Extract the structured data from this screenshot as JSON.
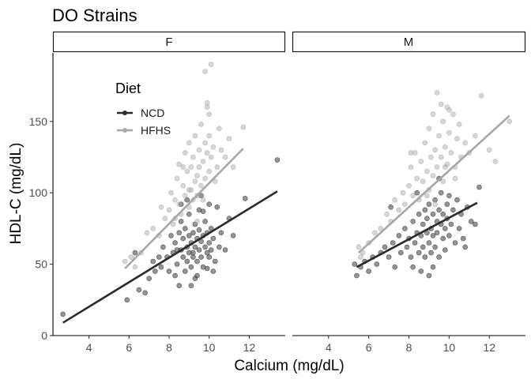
{
  "chart_data": {
    "type": "scatter",
    "title": "DO Strains",
    "xlabel": "Calcium (mg/dL)",
    "ylabel": "HDL-C (mg/dL)",
    "xlim": [
      2.2,
      13.8
    ],
    "ylim": [
      0,
      198
    ],
    "x_ticks": [
      4,
      6,
      8,
      10,
      12
    ],
    "y_ticks": [
      0,
      50,
      100,
      150
    ],
    "grid": false,
    "facets": [
      "F",
      "M"
    ],
    "legend": {
      "title": "Diet",
      "position": "inside-top-left",
      "entries": [
        {
          "label": "NCD",
          "color": "#2b2b2b"
        },
        {
          "label": "HFHS",
          "color": "#a6a6a6"
        }
      ]
    },
    "series": [
      {
        "name": "NCD",
        "facet": "F",
        "color": "#2b2b2b",
        "fit_line": {
          "x": [
            2.7,
            13.4
          ],
          "y": [
            9,
            101
          ]
        },
        "points": [
          [
            2.7,
            15
          ],
          [
            5.9,
            25
          ],
          [
            6.3,
            58
          ],
          [
            6.5,
            32
          ],
          [
            6.8,
            30
          ],
          [
            7.0,
            40
          ],
          [
            7.2,
            52
          ],
          [
            7.3,
            45
          ],
          [
            7.5,
            55
          ],
          [
            7.6,
            48
          ],
          [
            7.7,
            62
          ],
          [
            7.9,
            55
          ],
          [
            8.0,
            45
          ],
          [
            8.1,
            70
          ],
          [
            8.2,
            58
          ],
          [
            8.3,
            65
          ],
          [
            8.3,
            42
          ],
          [
            8.4,
            50
          ],
          [
            8.5,
            72
          ],
          [
            8.5,
            35
          ],
          [
            8.6,
            60
          ],
          [
            8.6,
            80
          ],
          [
            8.7,
            55
          ],
          [
            8.7,
            68
          ],
          [
            8.8,
            45
          ],
          [
            8.8,
            75
          ],
          [
            8.9,
            62
          ],
          [
            8.9,
            52
          ],
          [
            9.0,
            70
          ],
          [
            9.0,
            58
          ],
          [
            9.0,
            85
          ],
          [
            9.1,
            48
          ],
          [
            9.1,
            65
          ],
          [
            9.2,
            72
          ],
          [
            9.2,
            55
          ],
          [
            9.3,
            62
          ],
          [
            9.3,
            78
          ],
          [
            9.3,
            40
          ],
          [
            9.4,
            68
          ],
          [
            9.4,
            52
          ],
          [
            9.5,
            74
          ],
          [
            9.5,
            60
          ],
          [
            9.5,
            88
          ],
          [
            9.6,
            55
          ],
          [
            9.6,
            66
          ],
          [
            9.7,
            70
          ],
          [
            9.7,
            48
          ],
          [
            9.8,
            62
          ],
          [
            9.8,
            80
          ],
          [
            9.9,
            58
          ],
          [
            9.9,
            72
          ],
          [
            10.0,
            65
          ],
          [
            10.0,
            55
          ],
          [
            10.1,
            75
          ],
          [
            10.1,
            60
          ],
          [
            10.2,
            68
          ],
          [
            10.3,
            52
          ],
          [
            10.4,
            90
          ],
          [
            10.5,
            62
          ],
          [
            10.6,
            72
          ],
          [
            10.8,
            60
          ],
          [
            11.0,
            82
          ],
          [
            11.2,
            70
          ],
          [
            11.8,
            96
          ],
          [
            13.4,
            123
          ],
          [
            9.4,
            42
          ],
          [
            8.9,
            95
          ],
          [
            9.6,
            98
          ],
          [
            10.2,
            45
          ],
          [
            9.1,
            35
          ],
          [
            8.4,
            60
          ],
          [
            9.7,
            87
          ],
          [
            10.0,
            92
          ],
          [
            8.6,
            92
          ],
          [
            9.2,
            58
          ],
          [
            9.9,
            47
          ]
        ]
      },
      {
        "name": "HFHS",
        "facet": "F",
        "color": "#a6a6a6",
        "fit_line": {
          "x": [
            5.8,
            11.7
          ],
          "y": [
            47,
            131
          ]
        },
        "points": [
          [
            5.8,
            52
          ],
          [
            6.1,
            55
          ],
          [
            6.3,
            48
          ],
          [
            6.6,
            58
          ],
          [
            6.9,
            72
          ],
          [
            7.2,
            75
          ],
          [
            7.5,
            70
          ],
          [
            7.6,
            90
          ],
          [
            7.8,
            82
          ],
          [
            8.0,
            88
          ],
          [
            8.1,
            100
          ],
          [
            8.2,
            78
          ],
          [
            8.3,
            95
          ],
          [
            8.4,
            110
          ],
          [
            8.5,
            92
          ],
          [
            8.5,
            120
          ],
          [
            8.6,
            85
          ],
          [
            8.7,
            105
          ],
          [
            8.8,
            98
          ],
          [
            8.8,
            128
          ],
          [
            8.9,
            115
          ],
          [
            9.0,
            90
          ],
          [
            9.0,
            135
          ],
          [
            9.1,
            102
          ],
          [
            9.1,
            118
          ],
          [
            9.2,
            95
          ],
          [
            9.2,
            125
          ],
          [
            9.3,
            108
          ],
          [
            9.3,
            140
          ],
          [
            9.4,
            112
          ],
          [
            9.4,
            98
          ],
          [
            9.5,
            130
          ],
          [
            9.5,
            118
          ],
          [
            9.6,
            105
          ],
          [
            9.6,
            148
          ],
          [
            9.7,
            122
          ],
          [
            9.7,
            95
          ],
          [
            9.8,
            135
          ],
          [
            9.8,
            110
          ],
          [
            9.9,
            160
          ],
          [
            9.9,
            128
          ],
          [
            10.0,
            115
          ],
          [
            10.0,
            140
          ],
          [
            10.1,
            190
          ],
          [
            9.8,
            185
          ],
          [
            10.1,
            125
          ],
          [
            10.2,
            132
          ],
          [
            10.3,
            108
          ],
          [
            10.4,
            118
          ],
          [
            10.5,
            145
          ],
          [
            10.6,
            130
          ],
          [
            10.8,
            125
          ],
          [
            11.0,
            138
          ],
          [
            11.2,
            118
          ],
          [
            11.7,
            146
          ],
          [
            9.9,
            163
          ],
          [
            10.0,
            155
          ],
          [
            9.0,
            102
          ],
          [
            8.7,
            118
          ],
          [
            9.4,
            80
          ],
          [
            8.3,
            82
          ]
        ]
      },
      {
        "name": "NCD",
        "facet": "M",
        "color": "#2b2b2b",
        "fit_line": {
          "x": [
            5.4,
            11.4
          ],
          "y": [
            48,
            93
          ]
        },
        "points": [
          [
            5.3,
            50
          ],
          [
            5.4,
            42
          ],
          [
            5.6,
            48
          ],
          [
            5.8,
            52
          ],
          [
            6.0,
            45
          ],
          [
            6.2,
            55
          ],
          [
            6.4,
            50
          ],
          [
            6.6,
            58
          ],
          [
            6.8,
            62
          ],
          [
            7.0,
            55
          ],
          [
            7.2,
            65
          ],
          [
            7.3,
            48
          ],
          [
            7.5,
            70
          ],
          [
            7.6,
            58
          ],
          [
            7.8,
            75
          ],
          [
            7.9,
            62
          ],
          [
            8.0,
            68
          ],
          [
            8.1,
            55
          ],
          [
            8.2,
            80
          ],
          [
            8.3,
            65
          ],
          [
            8.4,
            72
          ],
          [
            8.5,
            58
          ],
          [
            8.5,
            85
          ],
          [
            8.6,
            70
          ],
          [
            8.7,
            62
          ],
          [
            8.7,
            78
          ],
          [
            8.8,
            88
          ],
          [
            8.8,
            55
          ],
          [
            8.9,
            72
          ],
          [
            8.9,
            82
          ],
          [
            9.0,
            65
          ],
          [
            9.0,
            92
          ],
          [
            9.1,
            75
          ],
          [
            9.1,
            58
          ],
          [
            9.2,
            85
          ],
          [
            9.2,
            70
          ],
          [
            9.3,
            95
          ],
          [
            9.3,
            62
          ],
          [
            9.4,
            80
          ],
          [
            9.4,
            72
          ],
          [
            9.5,
            88
          ],
          [
            9.5,
            55
          ],
          [
            9.6,
            78
          ],
          [
            9.6,
            100
          ],
          [
            9.7,
            68
          ],
          [
            9.7,
            85
          ],
          [
            9.8,
            75
          ],
          [
            9.8,
            60
          ],
          [
            9.9,
            92
          ],
          [
            9.9,
            82
          ],
          [
            10.0,
            70
          ],
          [
            10.0,
            98
          ],
          [
            10.1,
            78
          ],
          [
            10.2,
            88
          ],
          [
            10.3,
            65
          ],
          [
            10.4,
            95
          ],
          [
            10.5,
            75
          ],
          [
            10.6,
            85
          ],
          [
            10.7,
            68
          ],
          [
            10.9,
            90
          ],
          [
            11.1,
            80
          ],
          [
            11.3,
            78
          ],
          [
            8.6,
            45
          ],
          [
            9.0,
            42
          ],
          [
            8.2,
            48
          ],
          [
            9.5,
            110
          ],
          [
            7.1,
            90
          ],
          [
            10.8,
            62
          ],
          [
            11.5,
            104
          ],
          [
            8.4,
            100
          ],
          [
            9.2,
            48
          ]
        ]
      },
      {
        "name": "HFHS",
        "facet": "M",
        "color": "#a6a6a6",
        "fit_line": {
          "x": [
            5.5,
            13.0
          ],
          "y": [
            58,
            154
          ]
        },
        "points": [
          [
            5.5,
            62
          ],
          [
            5.7,
            58
          ],
          [
            6.0,
            65
          ],
          [
            6.3,
            72
          ],
          [
            6.6,
            75
          ],
          [
            6.9,
            85
          ],
          [
            7.1,
            80
          ],
          [
            7.3,
            95
          ],
          [
            7.5,
            88
          ],
          [
            7.7,
            100
          ],
          [
            7.8,
            92
          ],
          [
            8.0,
            105
          ],
          [
            8.1,
            118
          ],
          [
            8.2,
            98
          ],
          [
            8.3,
            128
          ],
          [
            8.4,
            110
          ],
          [
            8.5,
            95
          ],
          [
            8.6,
            122
          ],
          [
            8.7,
            108
          ],
          [
            8.8,
            135
          ],
          [
            8.9,
            115
          ],
          [
            9.0,
            102
          ],
          [
            9.0,
            145
          ],
          [
            9.1,
            125
          ],
          [
            9.2,
            112
          ],
          [
            9.2,
            155
          ],
          [
            9.3,
            130
          ],
          [
            9.4,
            118
          ],
          [
            9.4,
            170
          ],
          [
            9.5,
            140
          ],
          [
            9.6,
            125
          ],
          [
            9.7,
            150
          ],
          [
            9.7,
            108
          ],
          [
            9.8,
            132
          ],
          [
            9.9,
            160
          ],
          [
            9.9,
            120
          ],
          [
            10.0,
            142
          ],
          [
            10.1,
            128
          ],
          [
            10.2,
            155
          ],
          [
            10.3,
            118
          ],
          [
            10.4,
            138
          ],
          [
            10.5,
            148
          ],
          [
            10.6,
            125
          ],
          [
            10.8,
            135
          ],
          [
            11.0,
            128
          ],
          [
            11.3,
            140
          ],
          [
            11.6,
            168
          ],
          [
            12.0,
            130
          ],
          [
            12.3,
            122
          ],
          [
            13.0,
            150
          ],
          [
            9.6,
            162
          ],
          [
            10.0,
            158
          ],
          [
            8.9,
            98
          ],
          [
            9.3,
            92
          ],
          [
            5.6,
            55
          ],
          [
            10.3,
            110
          ],
          [
            8.1,
            128
          ],
          [
            9.8,
            118
          ]
        ]
      }
    ]
  }
}
